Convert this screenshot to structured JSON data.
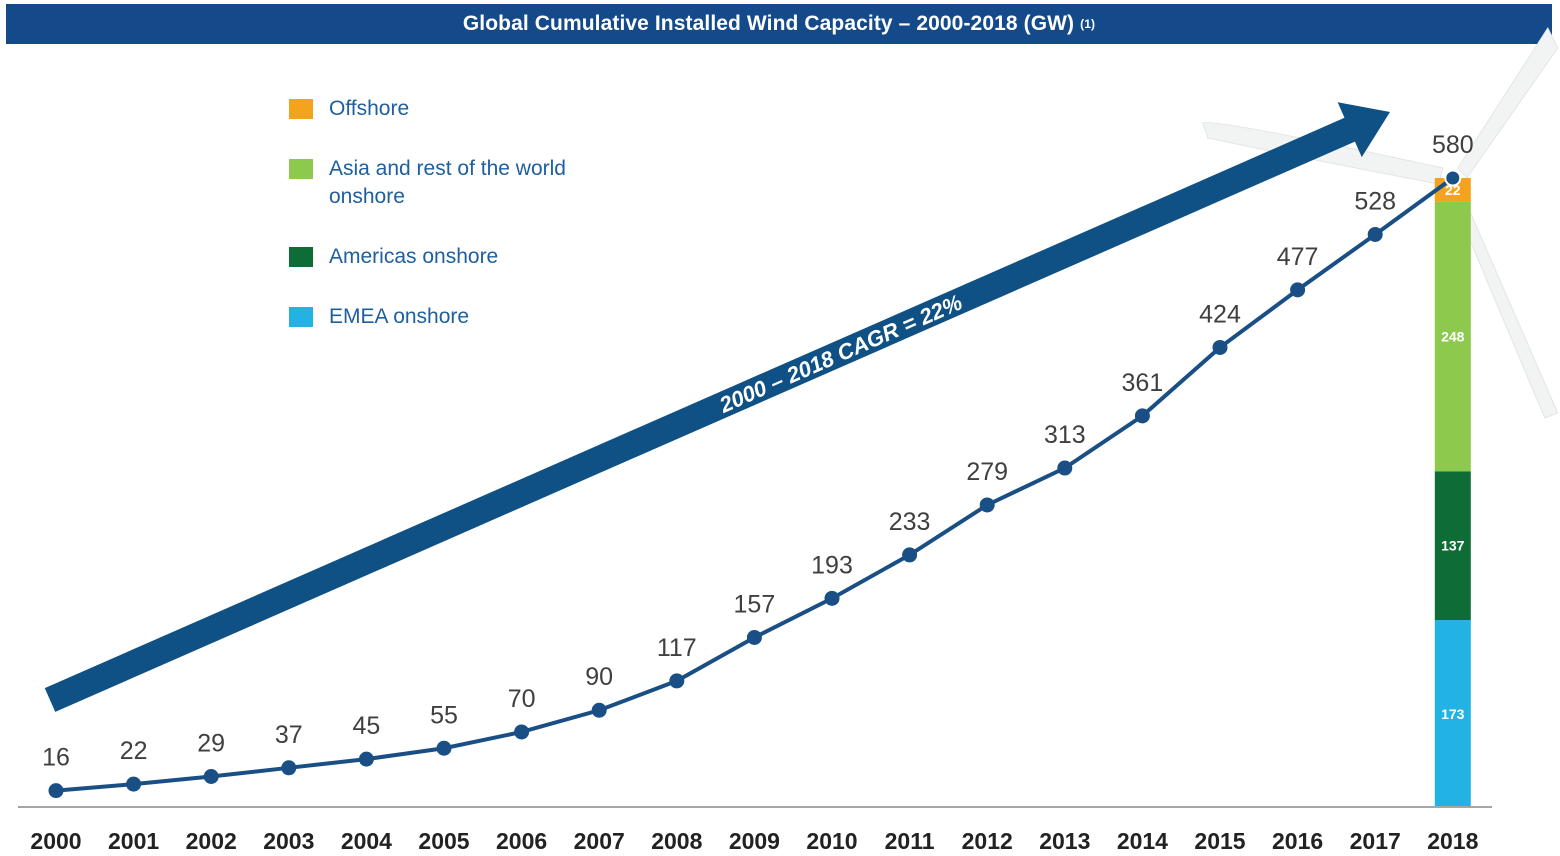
{
  "header": {
    "title": "Global Cumulative Installed Wind Capacity – 2000-2018 (GW)",
    "footnote": "(1)"
  },
  "colors": {
    "title_bg": "#144a8a",
    "line": "#1a4f86",
    "arrow": "#0f5185",
    "offshore": "#f3a41c",
    "asia": "#8cc94c",
    "americas": "#0e6c37",
    "emea": "#22b3e4"
  },
  "arrow_label": "2000 – 2018 CAGR = 22%",
  "legend": [
    {
      "label": "Offshore",
      "color_key": "offshore"
    },
    {
      "label": "Asia and rest of the world onshore",
      "color_key": "asia"
    },
    {
      "label": "Americas onshore",
      "color_key": "americas"
    },
    {
      "label": "EMEA onshore",
      "color_key": "emea"
    }
  ],
  "decoration": {
    "turbine_icon": "wind-turbine-icon"
  },
  "chart_data": {
    "type": "line",
    "title": "Global Cumulative Installed Wind Capacity – 2000-2018 (GW)",
    "x": [
      "2000",
      "2001",
      "2002",
      "2003",
      "2004",
      "2005",
      "2006",
      "2007",
      "2008",
      "2009",
      "2010",
      "2011",
      "2012",
      "2013",
      "2014",
      "2015",
      "2016",
      "2017",
      "2018"
    ],
    "series": [
      {
        "values": [
          16,
          22,
          29,
          37,
          45,
          55,
          70,
          90,
          117,
          157,
          193,
          233,
          279,
          313,
          361,
          424,
          477,
          528,
          580
        ]
      }
    ],
    "stacked_bar_2018": {
      "category": "2018",
      "segments": [
        {
          "name": "EMEA onshore",
          "value": 173,
          "color_key": "emea"
        },
        {
          "name": "Americas onshore",
          "value": 137,
          "color_key": "americas"
        },
        {
          "name": "Asia and rest of the world onshore",
          "value": 248,
          "color_key": "asia"
        },
        {
          "name": "Offshore",
          "value": 22,
          "color_key": "offshore"
        }
      ]
    },
    "data_labels": true,
    "grid": false,
    "legend_position": "top-left",
    "xlabel": "",
    "ylabel": ""
  }
}
